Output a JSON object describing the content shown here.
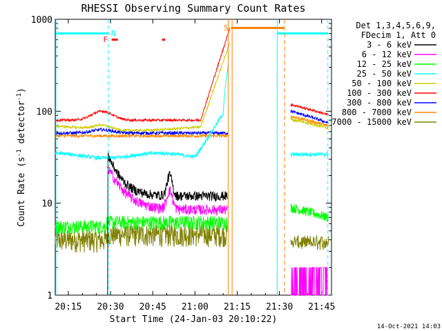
{
  "chart_data": {
    "type": "line",
    "title": "RHESSI Observing Summary Count Rates",
    "xlabel": "Start Time (24-Jan-03 20:10:22)",
    "ylabel_main": "Count Rate (s",
    "ylabel_sup1": "-1",
    "ylabel_mid": " detector",
    "ylabel_sup2": "-1",
    "ylabel_end": ")",
    "y_scale": "log",
    "ylim": [
      1,
      1000
    ],
    "xlim_minutes": [
      20.167,
      21.8
    ],
    "xlim": [
      "20:10",
      "21:48"
    ],
    "x_ticks": [
      "20:15",
      "20:30",
      "20:45",
      "21:00",
      "21:15",
      "21:30",
      "21:45"
    ],
    "x_tick_minutes": [
      15,
      30,
      45,
      60,
      75,
      90,
      105
    ],
    "y_ticks": [
      "1",
      "10",
      "100",
      "1000"
    ],
    "legend_header": [
      "Det 1,3,4,5,6,9,",
      "FDecim 1, Att 0"
    ],
    "legend_position": "right",
    "series": [
      {
        "name": "3 - 6 keV",
        "color": "#000000"
      },
      {
        "name": "6 - 12 keV",
        "color": "#ff00ff"
      },
      {
        "name": "12 - 25 keV",
        "color": "#00ff00"
      },
      {
        "name": "25 - 50 keV",
        "color": "#00ffff"
      },
      {
        "name": "50 - 100 keV",
        "color": "#cccc00"
      },
      {
        "name": "100 - 300 keV",
        "color": "#ff0000"
      },
      {
        "name": "300 - 800 keV",
        "color": "#0000ff"
      },
      {
        "name": "800 - 7000 keV",
        "color": "#ff8800"
      },
      {
        "name": "7000 - 15000 keV",
        "color": "#808000"
      }
    ],
    "flags": {
      "N": {
        "label": "N",
        "color": "#00ffff"
      },
      "F": {
        "label": "F",
        "color": "#ff0000"
      },
      "S": {
        "label": "S",
        "color": "#ff7f00"
      }
    },
    "timestamp": "14-Oct-2021 14:03"
  }
}
